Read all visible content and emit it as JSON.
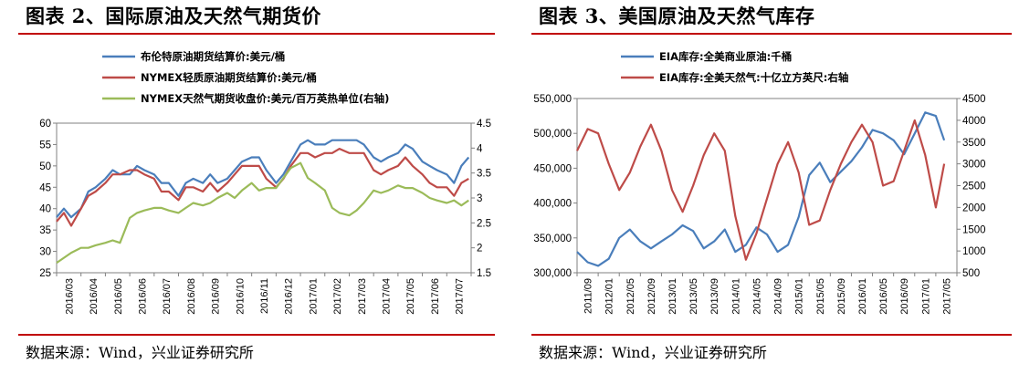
{
  "colors": {
    "blue": "#4a7ebb",
    "red": "#be4b48",
    "green": "#9bbb59",
    "accent_rule": "#c00000"
  },
  "left": {
    "title": "图表 2、国际原油及天然气期货价",
    "source": "数据来源：Wind，兴业证券研究所",
    "legend": [
      "布伦特原油期货结算价:美元/桶",
      "NYMEX轻质原油期货结算价:美元/桶",
      "NYMEX天然气期货收盘价:美元/百万英热单位(右轴)"
    ]
  },
  "right": {
    "title": "图表 3、美国原油及天然气库存",
    "source": "数据来源：Wind，兴业证券研究所",
    "legend": [
      "EIA库存:全美商业原油:千桶",
      "EIA库存:全美天然气:十亿立方英尺:右轴"
    ]
  },
  "chart_data": [
    {
      "type": "line",
      "title": "图表 2、国际原油及天然气期货价",
      "x": [
        "2016/03",
        "2016/04",
        "2016/05",
        "2016/06",
        "2016/07",
        "2016/08",
        "2016/09",
        "2016/10",
        "2016/11",
        "2016/12",
        "2017/01",
        "2017/02",
        "2017/03",
        "2017/04",
        "2017/05",
        "2017/06",
        "2017/07"
      ],
      "ylim": [
        25,
        60
      ],
      "yticks": [
        25,
        30,
        35,
        40,
        45,
        50,
        55,
        60
      ],
      "y2lim": [
        1.5,
        4.5
      ],
      "y2ticks": [
        "1.5",
        "2",
        "2.5",
        "3",
        "3.5",
        "4",
        "4.5"
      ],
      "grid": false,
      "legend_position": "top",
      "series": [
        {
          "name": "布伦特原油期货结算价:美元/桶",
          "axis": "left",
          "color": "#4a7ebb",
          "x": [
            0,
            0.3,
            0.6,
            1,
            1.3,
            1.6,
            2,
            2.3,
            2.6,
            3,
            3.3,
            3.6,
            4,
            4.3,
            4.6,
            5,
            5.3,
            5.6,
            6,
            6.3,
            6.6,
            7,
            7.3,
            7.6,
            8,
            8.3,
            8.6,
            9,
            9.3,
            9.6,
            10,
            10.3,
            10.6,
            11,
            11.3,
            11.6,
            12,
            12.3,
            12.6,
            13,
            13.3,
            13.6,
            14,
            14.3,
            14.6,
            15,
            15.3,
            15.6,
            16,
            16.3,
            16.6,
            16.9
          ],
          "values": [
            38,
            40,
            38,
            40,
            44,
            45,
            47,
            49,
            48,
            48,
            50,
            49,
            48,
            46,
            46,
            43,
            46,
            47,
            46,
            48,
            46,
            47,
            49,
            51,
            52,
            52,
            49,
            46,
            48,
            51,
            55,
            56,
            55,
            55,
            56,
            56,
            56,
            56,
            55,
            52,
            51,
            52,
            53,
            55,
            54,
            51,
            50,
            49,
            48,
            46,
            50,
            52
          ]
        },
        {
          "name": "NYMEX轻质原油期货结算价:美元/桶",
          "axis": "left",
          "color": "#be4b48",
          "x": [
            0,
            0.3,
            0.6,
            1,
            1.3,
            1.6,
            2,
            2.3,
            2.6,
            3,
            3.3,
            3.6,
            4,
            4.3,
            4.6,
            5,
            5.3,
            5.6,
            6,
            6.3,
            6.6,
            7,
            7.3,
            7.6,
            8,
            8.3,
            8.6,
            9,
            9.3,
            9.6,
            10,
            10.3,
            10.6,
            11,
            11.3,
            11.6,
            12,
            12.3,
            12.6,
            13,
            13.3,
            13.6,
            14,
            14.3,
            14.6,
            15,
            15.3,
            15.6,
            16,
            16.3,
            16.6,
            16.9
          ],
          "values": [
            37,
            39,
            36,
            40,
            43,
            44,
            46,
            48,
            48,
            49,
            49,
            48,
            47,
            44,
            44,
            42,
            45,
            45,
            44,
            46,
            44,
            46,
            48,
            50,
            50,
            50,
            47,
            45,
            47,
            50,
            53,
            53,
            52,
            53,
            53,
            54,
            53,
            53,
            53,
            49,
            48,
            49,
            50,
            52,
            50,
            48,
            46,
            45,
            45,
            43,
            46,
            47
          ]
        },
        {
          "name": "NYMEX天然气期货收盘价:美元/百万英热单位(右轴)",
          "axis": "right",
          "color": "#9bbb59",
          "x": [
            0,
            0.3,
            0.6,
            1,
            1.3,
            1.6,
            2,
            2.3,
            2.6,
            3,
            3.3,
            3.6,
            4,
            4.3,
            4.6,
            5,
            5.3,
            5.6,
            6,
            6.3,
            6.6,
            7,
            7.3,
            7.6,
            8,
            8.3,
            8.6,
            9,
            9.3,
            9.6,
            10,
            10.3,
            10.6,
            11,
            11.3,
            11.6,
            12,
            12.3,
            12.6,
            13,
            13.3,
            13.6,
            14,
            14.3,
            14.6,
            15,
            15.3,
            15.6,
            16,
            16.3,
            16.6,
            16.9
          ],
          "values": [
            1.7,
            1.8,
            1.9,
            2.0,
            2.0,
            2.05,
            2.1,
            2.15,
            2.1,
            2.6,
            2.7,
            2.75,
            2.8,
            2.8,
            2.75,
            2.7,
            2.8,
            2.9,
            2.85,
            2.9,
            3.0,
            3.1,
            3.0,
            3.15,
            3.3,
            3.15,
            3.2,
            3.2,
            3.4,
            3.6,
            3.7,
            3.4,
            3.3,
            3.15,
            2.8,
            2.7,
            2.65,
            2.75,
            2.9,
            3.15,
            3.1,
            3.15,
            3.25,
            3.2,
            3.2,
            3.1,
            3.0,
            2.95,
            2.9,
            2.95,
            2.85,
            2.95
          ]
        }
      ]
    },
    {
      "type": "line",
      "title": "图表 3、美国原油及天然气库存",
      "x": [
        "2011/09",
        "2012/01",
        "2012/05",
        "2012/09",
        "2013/01",
        "2013/05",
        "2013/09",
        "2014/01",
        "2014/05",
        "2014/09",
        "2015/01",
        "2015/05",
        "2015/09",
        "2016/01",
        "2016/05",
        "2016/09",
        "2017/01",
        "2017/05"
      ],
      "ylim": [
        300000,
        550000
      ],
      "yticks": [
        "300,000",
        "350,000",
        "400,000",
        "450,000",
        "500,000",
        "550,000"
      ],
      "y2lim": [
        500,
        4500
      ],
      "y2ticks": [
        "500",
        "1000",
        "1500",
        "2000",
        "2500",
        "3000",
        "3500",
        "4000",
        "4500"
      ],
      "grid": false,
      "legend_position": "top",
      "series": [
        {
          "name": "EIA库存:全美商业原油:千桶",
          "axis": "left",
          "color": "#4a7ebb",
          "x": [
            0,
            0.5,
            1,
            1.5,
            2,
            2.5,
            3,
            3.5,
            4,
            4.5,
            5,
            5.5,
            6,
            6.5,
            7,
            7.5,
            8,
            8.5,
            9,
            9.5,
            10,
            10.5,
            11,
            11.5,
            12,
            12.5,
            13,
            13.5,
            14,
            14.5,
            15,
            15.5,
            16,
            16.5,
            17,
            17.4
          ],
          "values": [
            330000,
            315000,
            310000,
            320000,
            350000,
            362000,
            345000,
            335000,
            345000,
            355000,
            368000,
            360000,
            335000,
            345000,
            362000,
            330000,
            340000,
            365000,
            355000,
            330000,
            340000,
            380000,
            440000,
            458000,
            430000,
            445000,
            460000,
            480000,
            505000,
            500000,
            490000,
            470000,
            500000,
            530000,
            525000,
            490000
          ]
        },
        {
          "name": "EIA库存:全美天然气:十亿立方英尺:右轴",
          "axis": "right",
          "color": "#be4b48",
          "x": [
            0,
            0.5,
            1,
            1.5,
            2,
            2.5,
            3,
            3.5,
            4,
            4.5,
            5,
            5.5,
            6,
            6.5,
            7,
            7.5,
            8,
            8.5,
            9,
            9.5,
            10,
            10.5,
            11,
            11.5,
            12,
            12.5,
            13,
            13.5,
            14,
            14.5,
            15,
            15.5,
            16,
            16.5,
            17,
            17.4
          ],
          "values": [
            3300,
            3800,
            3700,
            3000,
            2400,
            2800,
            3400,
            3900,
            3300,
            2400,
            1900,
            2500,
            3200,
            3700,
            3300,
            1800,
            800,
            1400,
            2200,
            3000,
            3500,
            2800,
            1600,
            1700,
            2400,
            3000,
            3500,
            3900,
            3500,
            2500,
            2600,
            3300,
            4000,
            3200,
            2000,
            3000
          ]
        }
      ]
    }
  ]
}
